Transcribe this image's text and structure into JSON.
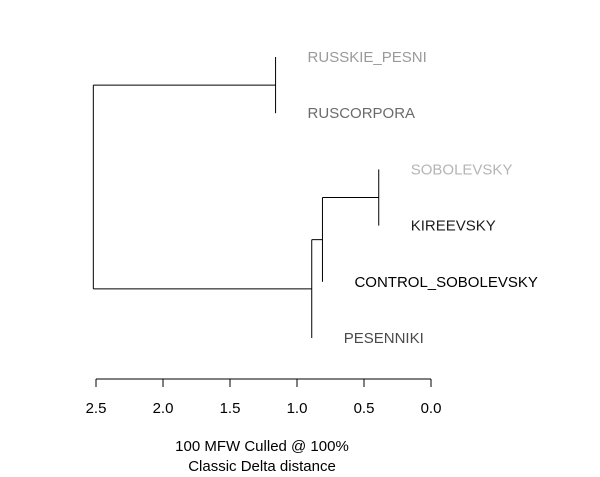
{
  "chart_data": {
    "type": "dendrogram",
    "axis": {
      "ticks": [
        2.5,
        2.0,
        1.5,
        1.0,
        0.5,
        0.0
      ],
      "tick_labels": [
        "2.5",
        "2.0",
        "1.5",
        "1.0",
        "0.5",
        "0.0"
      ],
      "range": [
        2.5,
        0.0
      ]
    },
    "footer": {
      "line1": "100 MFW  Culled @ 100%",
      "line2": "Classic Delta distance"
    },
    "leaves": [
      {
        "id": "russkie_pesni",
        "label": "RUSSKIE_PESNI",
        "color": "#9a9a9a",
        "height": 1.16
      },
      {
        "id": "ruscorpora",
        "label": "RUSCORPORA",
        "color": "#6b6b6b",
        "height": 1.16
      },
      {
        "id": "sobolevsky",
        "label": "SOBOLEVSKY",
        "color": "#b5b5b5",
        "height": 0.39
      },
      {
        "id": "kireevsky",
        "label": "KIREEVSKY",
        "color": "#1e1e1e",
        "height": 0.39
      },
      {
        "id": "control_sobolevsky",
        "label": "CONTROL_SOBOLEVSKY",
        "color": "#000000",
        "height": 0.81
      },
      {
        "id": "pesenniki",
        "label": "PESENNIKI",
        "color": "#4a4a4a",
        "height": 0.89
      }
    ],
    "merges": [
      {
        "id": "m1",
        "children": [
          "russkie_pesni",
          "ruscorpora"
        ],
        "height": 1.16
      },
      {
        "id": "m2",
        "children": [
          "sobolevsky",
          "kireevsky"
        ],
        "height": 0.39
      },
      {
        "id": "m3",
        "children": [
          "m2",
          "control_sobolevsky"
        ],
        "height": 0.81
      },
      {
        "id": "m4",
        "children": [
          "m3",
          "pesenniki"
        ],
        "height": 0.89
      },
      {
        "id": "m5",
        "children": [
          "m1",
          "m4"
        ],
        "height": 2.52
      }
    ]
  }
}
